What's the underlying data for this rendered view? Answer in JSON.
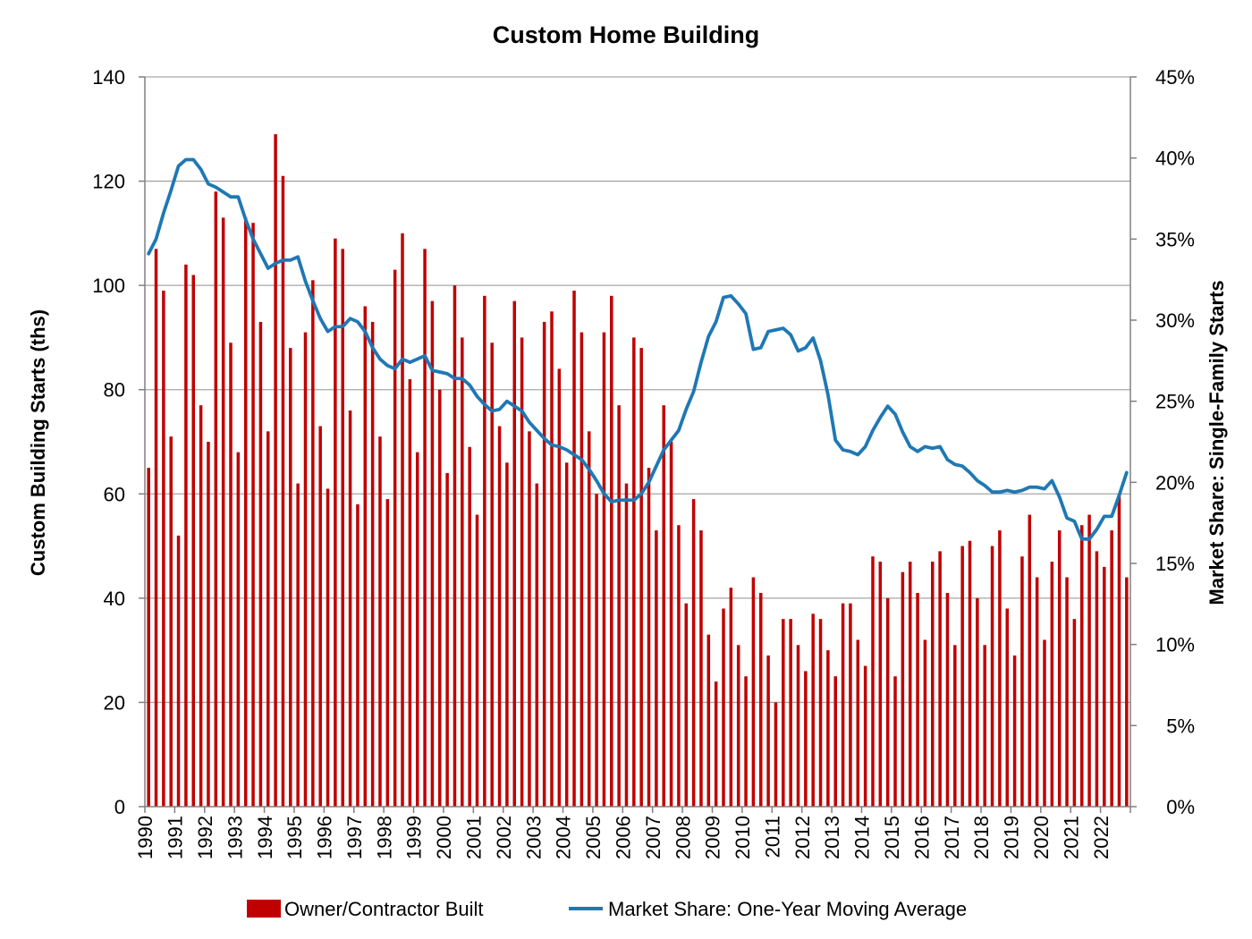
{
  "chart_data": {
    "type": "bar+line",
    "title": "Custom Home Building",
    "ylabel_left": "Custom Building Starts (ths)",
    "ylabel_right": "Market Share: Single-Family Starts",
    "ylim_left": [
      0,
      140
    ],
    "yticks_left": [
      "0",
      "20",
      "40",
      "60",
      "80",
      "100",
      "120",
      "140"
    ],
    "ylim_right": [
      0,
      45
    ],
    "yticks_right": [
      "0%",
      "5%",
      "10%",
      "15%",
      "20%",
      "25%",
      "30%",
      "35%",
      "40%",
      "45%"
    ],
    "year_labels": [
      "1990",
      "1991",
      "1992",
      "1993",
      "1994",
      "1995",
      "1996",
      "1997",
      "1998",
      "1999",
      "2000",
      "2001",
      "2002",
      "2003",
      "2004",
      "2005",
      "2006",
      "2007",
      "2008",
      "2009",
      "2010",
      "2011",
      "2012",
      "2013",
      "2014",
      "2015",
      "2016",
      "2017",
      "2018",
      "2019",
      "2020",
      "2021",
      "2022"
    ],
    "grid": true,
    "legend": {
      "position": "bottom",
      "bar_label": "Owner/Contractor Built",
      "line_label": "Market Share: One-Year Moving Average"
    },
    "colors": {
      "bar": "#C00000",
      "line": "#1F78B4",
      "grid": "#A6A6A6",
      "axis": "#808080"
    },
    "series": [
      {
        "name": "Owner/Contractor Built",
        "kind": "bar",
        "values": [
          65,
          107,
          99,
          71,
          52,
          104,
          102,
          77,
          70,
          118,
          113,
          89,
          68,
          113,
          112,
          93,
          72,
          129,
          121,
          88,
          62,
          91,
          101,
          73,
          61,
          109,
          107,
          76,
          58,
          96,
          93,
          71,
          59,
          103,
          110,
          82,
          68,
          107,
          97,
          80,
          64,
          100,
          90,
          69,
          56,
          98,
          89,
          73,
          66,
          97,
          90,
          72,
          62,
          93,
          95,
          84,
          66,
          99,
          91,
          72,
          60,
          91,
          98,
          77,
          62,
          90,
          88,
          65,
          53,
          77,
          70,
          54,
          39,
          59,
          53,
          33,
          24,
          38,
          42,
          31,
          25,
          44,
          41,
          29,
          20,
          36,
          36,
          31,
          26,
          37,
          36,
          30,
          25,
          39,
          39,
          32,
          27,
          48,
          47,
          40,
          25,
          45,
          47,
          41,
          32,
          47,
          49,
          41,
          31,
          50,
          51,
          40,
          31,
          50,
          53,
          38,
          29,
          48,
          56,
          44,
          32,
          47,
          53,
          44,
          36,
          54,
          56,
          49,
          46,
          53,
          60,
          44
        ]
      },
      {
        "name": "Market Share: One-Year Moving Average",
        "kind": "line",
        "values": [
          34.1,
          35.0,
          36.6,
          38.0,
          39.5,
          39.9,
          39.9,
          39.3,
          38.4,
          38.2,
          37.9,
          37.6,
          37.6,
          36.2,
          35.0,
          34.1,
          33.2,
          33.5,
          33.7,
          33.7,
          33.9,
          32.4,
          31.2,
          30.1,
          29.3,
          29.6,
          29.6,
          30.1,
          29.9,
          29.3,
          28.3,
          27.6,
          27.2,
          27.0,
          27.6,
          27.4,
          27.6,
          27.8,
          26.9,
          26.8,
          26.7,
          26.4,
          26.4,
          26.0,
          25.3,
          24.8,
          24.4,
          24.5,
          25.0,
          24.7,
          24.4,
          23.7,
          23.2,
          22.7,
          22.3,
          22.2,
          22.0,
          21.7,
          21.4,
          20.8,
          20.1,
          19.3,
          18.8,
          18.9,
          18.9,
          18.9,
          19.3,
          20.0,
          21.0,
          22.0,
          22.6,
          23.2,
          24.5,
          25.6,
          27.4,
          29.0,
          29.9,
          31.4,
          31.5,
          31.0,
          30.4,
          28.2,
          28.3,
          29.3,
          29.4,
          29.5,
          29.1,
          28.1,
          28.3,
          28.9,
          27.5,
          25.4,
          22.6,
          22.0,
          21.9,
          21.7,
          22.2,
          23.2,
          24.0,
          24.7,
          24.2,
          23.1,
          22.2,
          21.9,
          22.2,
          22.1,
          22.2,
          21.4,
          21.1,
          21.0,
          20.6,
          20.1,
          19.8,
          19.4,
          19.4,
          19.5,
          19.4,
          19.5,
          19.7,
          19.7,
          19.6,
          20.1,
          19.1,
          17.8,
          17.6,
          16.5,
          16.5,
          17.1,
          17.9,
          17.9,
          19.2,
          20.6
        ]
      }
    ]
  }
}
